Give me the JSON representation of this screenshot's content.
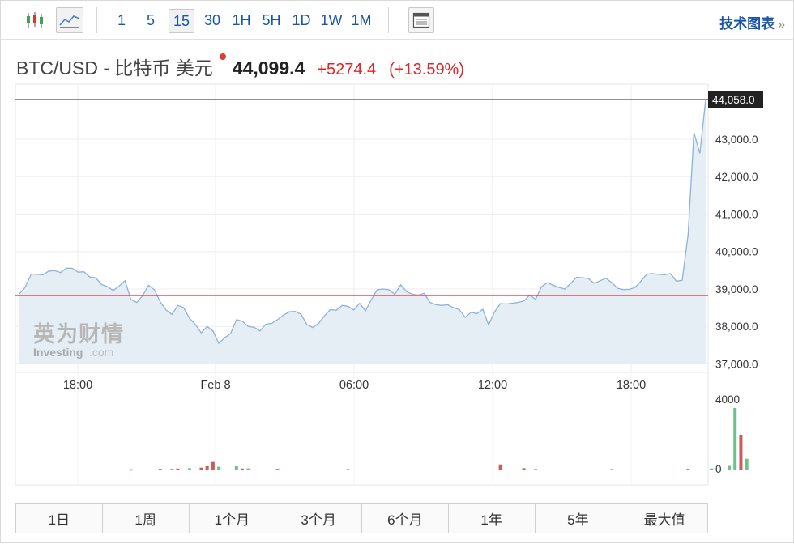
{
  "toolbar": {
    "candlestick_icon": "candlestick-chart-icon",
    "line_icon": "line-chart-icon",
    "table_icon": "data-table-icon",
    "intervals": [
      {
        "label": "1",
        "active": false
      },
      {
        "label": "5",
        "active": false
      },
      {
        "label": "15",
        "active": true
      },
      {
        "label": "30",
        "active": false
      },
      {
        "label": "1H",
        "active": false
      },
      {
        "label": "5H",
        "active": false
      },
      {
        "label": "1D",
        "active": false
      },
      {
        "label": "1W",
        "active": false
      },
      {
        "label": "1M",
        "active": false
      }
    ],
    "tech_chart_label": "技术图表",
    "tech_chart_chevron": "»"
  },
  "header": {
    "instrument": "BTC/USD - 比特币 美元",
    "price": "44,099.4",
    "change": "+5274.4",
    "change_pct": "(+13.59%)"
  },
  "colors": {
    "accent_blue": "#1a56a8",
    "line": "#8fb2d6",
    "area": "#e5eef5",
    "up": "#e02525",
    "vol_up": "#6fc08a",
    "vol_down": "#d05a5a",
    "ref_line": "#d63030"
  },
  "watermark": {
    "cn": "英为财情",
    "en": "Investing",
    "suffix": ".com"
  },
  "chart_data": {
    "type": "area",
    "x_ticks": [
      "18:00",
      "Feb 8",
      "06:00",
      "12:00",
      "18:00"
    ],
    "y_ticks": [
      "37,000.0",
      "38,000.0",
      "39,000.0",
      "40,000.0",
      "41,000.0",
      "42,000.0",
      "43,000.0"
    ],
    "ylim": [
      37000,
      44100
    ],
    "current_label": "44,058.0",
    "reference_price": 38825,
    "price": [
      38870,
      39050,
      39400,
      39390,
      39380,
      39480,
      39490,
      39440,
      39560,
      39550,
      39450,
      39460,
      39320,
      39300,
      39120,
      39060,
      38960,
      39080,
      39220,
      38720,
      38640,
      38820,
      39100,
      38980,
      38660,
      38440,
      38320,
      38560,
      38500,
      38220,
      38050,
      37830,
      38000,
      37880,
      37550,
      37700,
      37810,
      38180,
      38140,
      38000,
      37980,
      37880,
      38060,
      38080,
      38180,
      38300,
      38390,
      38400,
      38330,
      38050,
      37970,
      38080,
      38280,
      38450,
      38430,
      38560,
      38540,
      38440,
      38620,
      38420,
      38720,
      38980,
      39000,
      38980,
      38860,
      39110,
      38930,
      38860,
      38840,
      38880,
      38640,
      38580,
      38560,
      38580,
      38500,
      38450,
      38240,
      38380,
      38340,
      38460,
      38040,
      38390,
      38610,
      38600,
      38620,
      38640,
      38680,
      38840,
      38720,
      39060,
      39170,
      39100,
      39040,
      39000,
      39150,
      39310,
      39300,
      39280,
      39150,
      39220,
      39290,
      39170,
      39020,
      38980,
      38990,
      39040,
      39220,
      39400,
      39410,
      39390,
      39380,
      39410,
      39210,
      39230,
      40450,
      43180,
      42620,
      44060
    ],
    "volume_axis": {
      "ticks": [
        "4000",
        "0"
      ],
      "ylim": [
        0,
        4000
      ]
    },
    "volume": [
      {
        "i": 19,
        "v": 60,
        "dir": "down"
      },
      {
        "i": 24,
        "v": 80,
        "dir": "down"
      },
      {
        "i": 26,
        "v": 90,
        "dir": "up"
      },
      {
        "i": 27,
        "v": 100,
        "dir": "down"
      },
      {
        "i": 29,
        "v": 120,
        "dir": "up"
      },
      {
        "i": 31,
        "v": 150,
        "dir": "down"
      },
      {
        "i": 32,
        "v": 230,
        "dir": "down"
      },
      {
        "i": 33,
        "v": 470,
        "dir": "down"
      },
      {
        "i": 34,
        "v": 200,
        "dir": "up"
      },
      {
        "i": 37,
        "v": 230,
        "dir": "up"
      },
      {
        "i": 38,
        "v": 100,
        "dir": "down"
      },
      {
        "i": 39,
        "v": 110,
        "dir": "up"
      },
      {
        "i": 44,
        "v": 80,
        "dir": "down"
      },
      {
        "i": 56,
        "v": 80,
        "dir": "up"
      },
      {
        "i": 82,
        "v": 330,
        "dir": "down"
      },
      {
        "i": 86,
        "v": 120,
        "dir": "down"
      },
      {
        "i": 88,
        "v": 80,
        "dir": "up"
      },
      {
        "i": 101,
        "v": 80,
        "dir": "up"
      },
      {
        "i": 114,
        "v": 100,
        "dir": "up"
      },
      {
        "i": 118,
        "v": 110,
        "dir": "up"
      },
      {
        "i": 121,
        "v": 250,
        "dir": "up"
      },
      {
        "i": 122,
        "v": 3500,
        "dir": "up"
      },
      {
        "i": 123,
        "v": 2000,
        "dir": "down"
      },
      {
        "i": 124,
        "v": 650,
        "dir": "up"
      }
    ]
  },
  "ranges": [
    "1日",
    "1周",
    "1个月",
    "3个月",
    "6个月",
    "1年",
    "5年",
    "最大值"
  ]
}
